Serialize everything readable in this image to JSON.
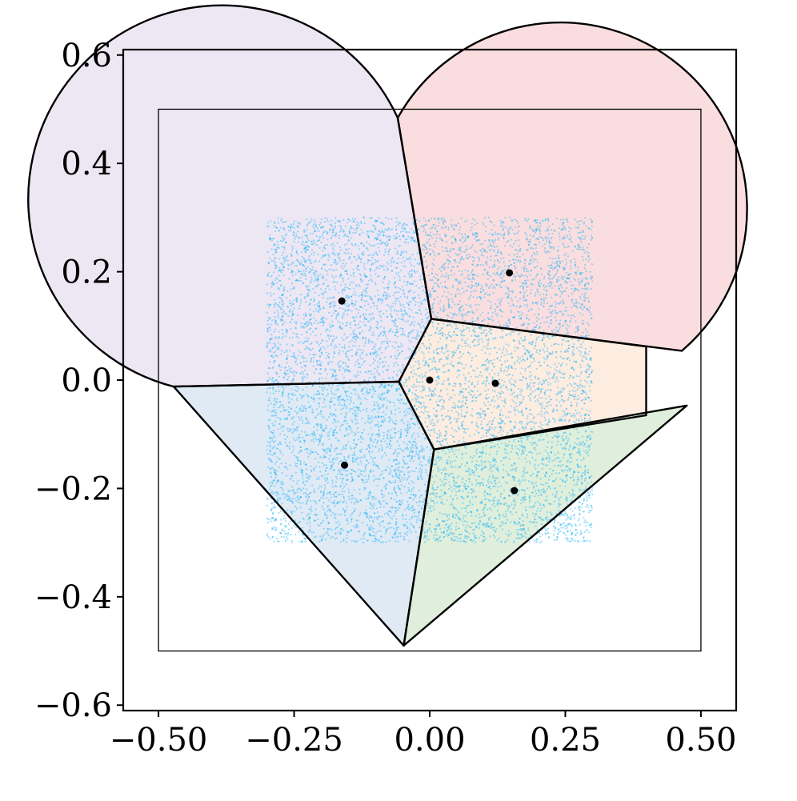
{
  "chart_data": {
    "type": "scatter",
    "title": "",
    "xlabel": "",
    "ylabel": "",
    "xlim": [
      -0.565,
      0.565
    ],
    "ylim": [
      -0.61,
      0.61
    ],
    "x_ticks": [
      -0.5,
      -0.25,
      0.0,
      0.25,
      0.5
    ],
    "y_ticks": [
      -0.6,
      -0.4,
      -0.2,
      0.0,
      0.2,
      0.4,
      0.6
    ],
    "x_tick_labels": [
      "−0.50",
      "−0.25",
      "0.00",
      "0.25",
      "0.50"
    ],
    "y_tick_labels": [
      "−0.6",
      "−0.4",
      "−0.2",
      "0.0",
      "0.2",
      "0.4",
      "0.6"
    ],
    "grid": false,
    "bounding_square": {
      "x": [
        -0.5,
        0.5
      ],
      "y": [
        -0.5,
        0.5
      ]
    },
    "sample_region": {
      "x": [
        -0.3,
        0.3
      ],
      "y": [
        -0.3,
        0.3
      ],
      "color": "#29b6f6"
    },
    "centers": [
      {
        "x": -0.162,
        "y": 0.146
      },
      {
        "x": 0.147,
        "y": 0.198
      },
      {
        "x": 0.0,
        "y": 0.0
      },
      {
        "x": 0.121,
        "y": -0.006
      },
      {
        "x": -0.157,
        "y": -0.157
      },
      {
        "x": 0.156,
        "y": -0.204
      }
    ],
    "cells": [
      {
        "color": "#ede7f4",
        "vertices": [
          [
            -0.472,
            -0.012
          ],
          [
            -0.057,
            -0.003
          ],
          [
            0.003,
            0.113
          ],
          [
            -0.059,
            0.484
          ]
        ],
        "arc": {
          "cx": -0.158,
          "cy": 0.152,
          "r": 0.357,
          "from": [
            -0.059,
            0.484
          ],
          "to": [
            -0.472,
            -0.012
          ]
        }
      },
      {
        "color": "#fadedf",
        "vertices": [
          [
            -0.059,
            0.484
          ],
          [
            0.003,
            0.113
          ],
          [
            0.465,
            0.054
          ]
        ],
        "arc": {
          "cx": 0.153,
          "cy": 0.2,
          "r": 0.344,
          "from": [
            0.465,
            0.054
          ],
          "to": [
            -0.059,
            0.484
          ]
        }
      },
      {
        "color": "#fdece0",
        "vertices": [
          [
            -0.057,
            -0.003
          ],
          [
            0.003,
            0.113
          ],
          [
            0.399,
            0.062
          ],
          [
            0.399,
            -0.065
          ],
          [
            0.008,
            -0.128
          ]
        ],
        "arc": null
      },
      {
        "color": "#dfeaf5",
        "vertices": [
          [
            -0.472,
            -0.012
          ],
          [
            -0.057,
            -0.003
          ],
          [
            0.008,
            -0.128
          ],
          [
            -0.048,
            -0.49
          ]
        ],
        "arc": {
          "cx": -0.16,
          "cy": -0.165,
          "r": 0.343,
          "from": [
            -0.472,
            -0.012
          ],
          "to": [
            -0.048,
            -0.49
          ]
        }
      },
      {
        "color": "#dfefdc",
        "vertices": [
          [
            0.008,
            -0.128
          ],
          [
            0.474,
            -0.047
          ],
          [
            -0.048,
            -0.49
          ]
        ],
        "arc": {
          "cx": 0.16,
          "cy": -0.21,
          "r": 0.35,
          "from": [
            0.474,
            -0.047
          ],
          "to": [
            -0.048,
            -0.49
          ]
        }
      }
    ],
    "boundary_color": "#000000"
  }
}
